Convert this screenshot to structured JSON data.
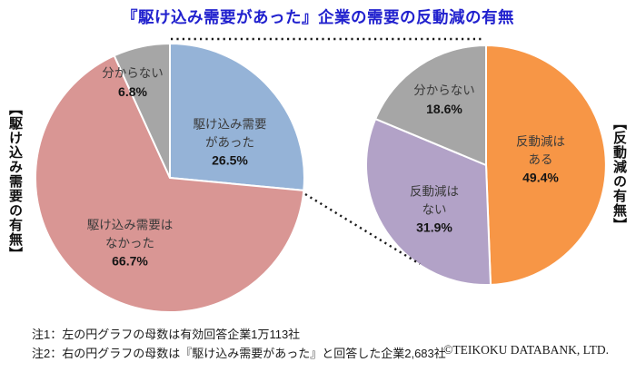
{
  "page": {
    "title": "『駆け込み需要があった』企業の需要の反動減の有無",
    "notes": [
      "注1：左の円グラフの母数は有効回答企業1万113社",
      "注2：右の円グラフの母数は『駆け込み需要があった』と回答した企業2,683社"
    ],
    "copyright": "©TEIKOKU DATABANK, LTD."
  },
  "colors": {
    "title": "#2121ce",
    "slice_divider": "#ffffff",
    "connector": "#1a1a1a",
    "label_text": "#3a3a3a",
    "pct_text": "#151515"
  },
  "chart_data": [
    {
      "type": "pie",
      "side_label": "【駆け込み需要の有無】",
      "start_angle_deg": 0,
      "direction": "clockwise",
      "slices": [
        {
          "label": "駆け込み需要があった",
          "display_lines": [
            "駆け込み需要",
            "があった"
          ],
          "value_pct": 26.5,
          "value_display": "26.5%",
          "color": "#95b3d7"
        },
        {
          "label": "駆け込み需要はなかった",
          "display_lines": [
            "駆け込み需要は",
            "なかった"
          ],
          "value_pct": 66.7,
          "value_display": "66.7%",
          "color": "#d99694"
        },
        {
          "label": "分からない",
          "display_lines": [
            "分からない"
          ],
          "value_pct": 6.8,
          "value_display": "6.8%",
          "color": "#a6a6a6"
        }
      ]
    },
    {
      "type": "pie",
      "side_label": "【反動減の有無】",
      "start_angle_deg": 0,
      "direction": "clockwise",
      "slices": [
        {
          "label": "反動減はある",
          "display_lines": [
            "反動減は",
            "ある"
          ],
          "value_pct": 49.4,
          "value_display": "49.4%",
          "color": "#f79646"
        },
        {
          "label": "反動減はない",
          "display_lines": [
            "反動減は",
            "ない"
          ],
          "value_pct": 31.9,
          "value_display": "31.9%",
          "color": "#b2a2c7"
        },
        {
          "label": "分からない",
          "display_lines": [
            "分からない"
          ],
          "value_pct": 18.6,
          "value_display": "18.6%",
          "color": "#a6a6a6"
        }
      ]
    }
  ]
}
